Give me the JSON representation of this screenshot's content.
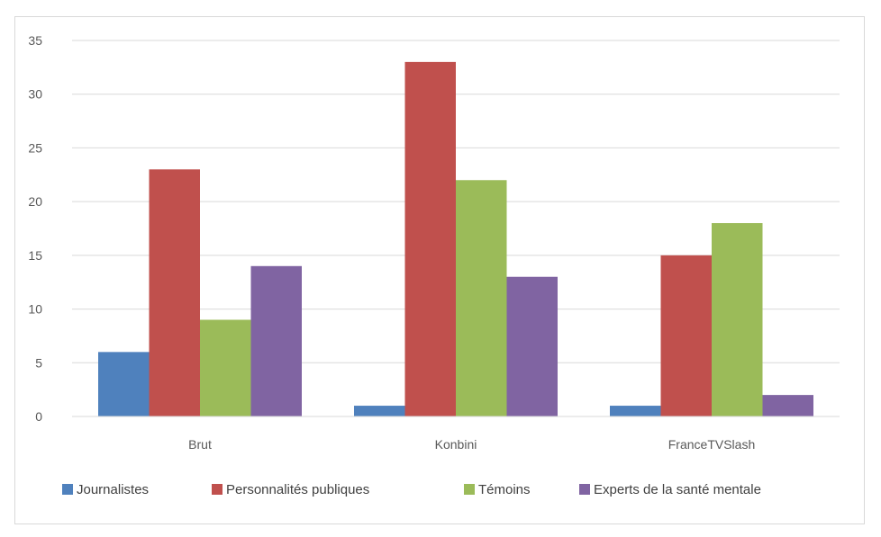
{
  "chart_data": {
    "type": "bar",
    "categories": [
      "Brut",
      "Konbini",
      "FranceTVSlash"
    ],
    "series": [
      {
        "name": "Journalistes",
        "values": [
          6,
          1,
          1
        ],
        "color": "#4f81bd"
      },
      {
        "name": "Personnalités publiques",
        "values": [
          23,
          33,
          15
        ],
        "color": "#c0504d"
      },
      {
        "name": "Témoins",
        "values": [
          9,
          22,
          18
        ],
        "color": "#9bbb59"
      },
      {
        "name": "Experts de la santé mentale",
        "values": [
          14,
          13,
          2
        ],
        "color": "#8064a2"
      }
    ],
    "ylim": [
      0,
      35
    ],
    "yticks": [
      0,
      5,
      10,
      15,
      20,
      25,
      30,
      35
    ],
    "ytick_labels": [
      "0",
      "5",
      "10",
      "15",
      "20",
      "25",
      "30",
      "35"
    ],
    "grid": true,
    "legend_position": "bottom"
  }
}
